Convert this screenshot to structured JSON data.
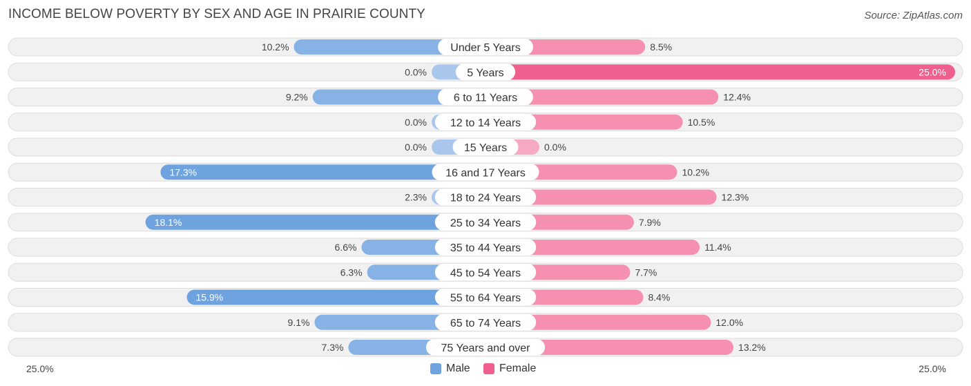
{
  "title": "INCOME BELOW POVERTY BY SEX AND AGE IN PRAIRIE COUNTY",
  "source": "Source: ZipAtlas.com",
  "colors": {
    "male": "#6fa3e0",
    "male_light": "#a9c7ec",
    "female": "#f57aa0",
    "female_light": "#f7a9c3",
    "female_strong": "#f0608f"
  },
  "chart_data": {
    "type": "bar",
    "orientation": "horizontal-diverging",
    "title": "INCOME BELOW POVERTY BY SEX AND AGE IN PRAIRIE COUNTY",
    "categories": [
      "Under 5 Years",
      "5 Years",
      "6 to 11 Years",
      "12 to 14 Years",
      "15 Years",
      "16 and 17 Years",
      "18 to 24 Years",
      "25 to 34 Years",
      "35 to 44 Years",
      "45 to 54 Years",
      "55 to 64 Years",
      "65 to 74 Years",
      "75 Years and over"
    ],
    "series": [
      {
        "name": "Male",
        "values": [
          10.2,
          0.0,
          9.2,
          0.0,
          0.0,
          17.3,
          2.3,
          18.1,
          6.6,
          6.3,
          15.9,
          9.1,
          7.3
        ],
        "labels": [
          "10.2%",
          "0.0%",
          "9.2%",
          "0.0%",
          "0.0%",
          "17.3%",
          "2.3%",
          "18.1%",
          "6.6%",
          "6.3%",
          "15.9%",
          "9.1%",
          "7.3%"
        ]
      },
      {
        "name": "Female",
        "values": [
          8.5,
          25.0,
          12.4,
          10.5,
          0.0,
          10.2,
          12.3,
          7.9,
          11.4,
          7.7,
          8.4,
          12.0,
          13.2
        ],
        "labels": [
          "8.5%",
          "25.0%",
          "12.4%",
          "10.5%",
          "0.0%",
          "10.2%",
          "12.3%",
          "7.9%",
          "11.4%",
          "7.7%",
          "8.4%",
          "12.0%",
          "13.2%"
        ]
      }
    ],
    "xlim": [
      -25,
      25
    ],
    "axis_labels": {
      "left": "25.0%",
      "right": "25.0%"
    },
    "legend": {
      "position": "bottom-center",
      "entries": [
        "Male",
        "Female"
      ]
    }
  }
}
